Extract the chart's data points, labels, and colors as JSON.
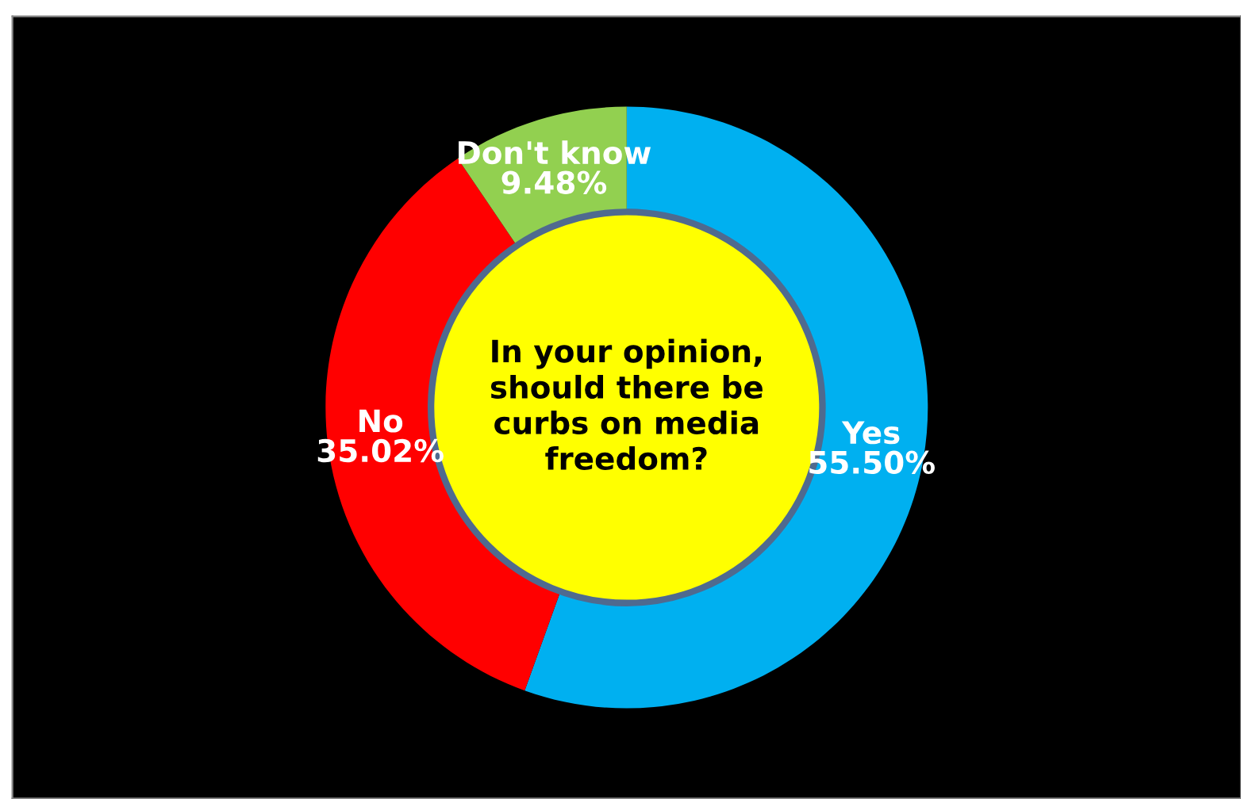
{
  "chart_data": {
    "type": "donut",
    "title": "In your opinion, should there be curbs on media freedom?",
    "categories": [
      "Yes",
      "No",
      "Don't know"
    ],
    "values": [
      55.5,
      35.02,
      9.48
    ],
    "value_labels": [
      "55.50%",
      "35.02%",
      "9.48%"
    ],
    "colors": [
      "#00b0f0",
      "#ff0000",
      "#92d050"
    ],
    "legend": false
  }
}
